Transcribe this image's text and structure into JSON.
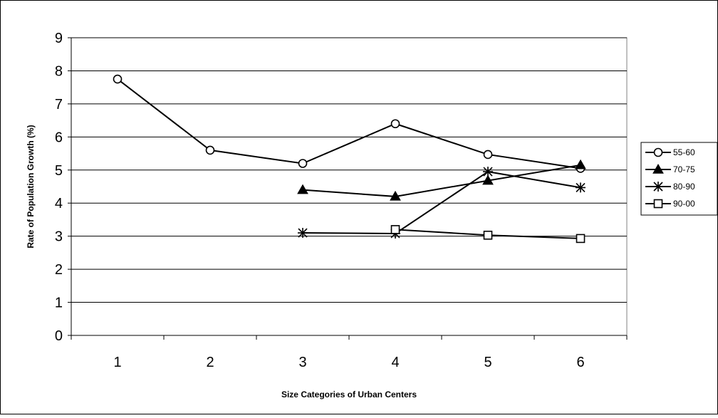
{
  "chart_data": {
    "type": "line",
    "title": "",
    "xlabel": "Size Categories of Urban Centers",
    "ylabel": "Rate of Population Growth (%)",
    "categories": [
      "1",
      "2",
      "3",
      "4",
      "5",
      "6"
    ],
    "ylim": [
      0,
      9
    ],
    "yticks": [
      "0",
      "1",
      "2",
      "3",
      "4",
      "5",
      "6",
      "7",
      "8",
      "9"
    ],
    "grid": true,
    "legend_position": "right",
    "series": [
      {
        "name": "55-60",
        "marker": "circle-open",
        "values": [
          7.75,
          5.6,
          5.2,
          6.4,
          5.47,
          5.05
        ]
      },
      {
        "name": "70-75",
        "marker": "triangle-filled",
        "values": [
          null,
          null,
          4.4,
          4.2,
          4.68,
          5.15
        ]
      },
      {
        "name": "80-90",
        "marker": "star",
        "values": [
          null,
          null,
          3.1,
          3.08,
          4.95,
          4.47
        ]
      },
      {
        "name": "90-00",
        "marker": "square-open",
        "values": [
          null,
          null,
          null,
          3.2,
          3.03,
          2.93
        ]
      }
    ]
  }
}
